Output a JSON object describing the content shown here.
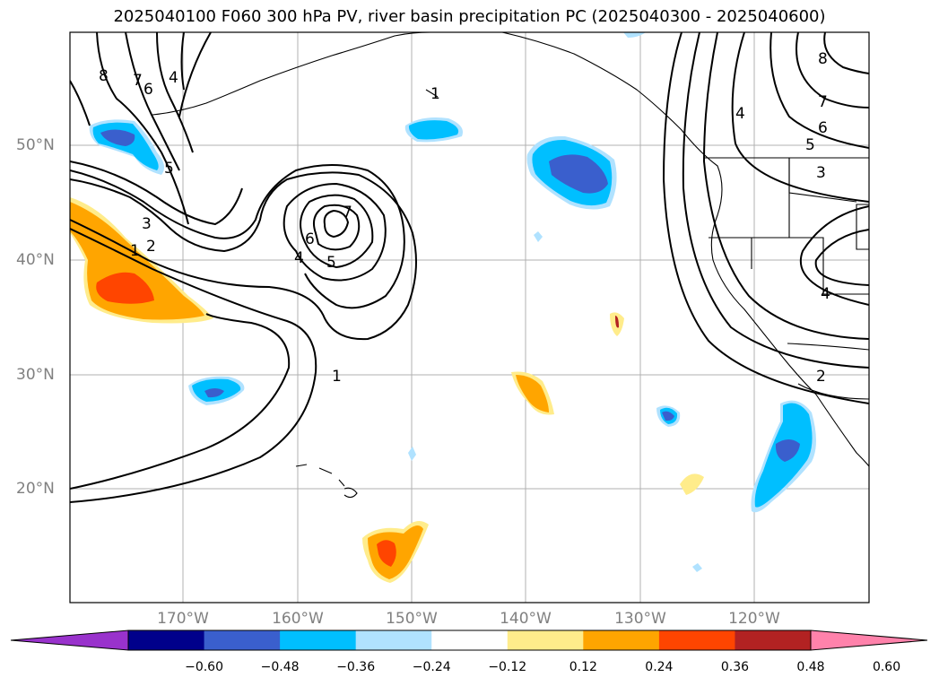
{
  "title": "2025040100 F060 300 hPa PV, river basin precipitation PC (2025040300 - 2025040600)",
  "lat_labels": [
    "50°N",
    "40°N",
    "30°N",
    "20°N"
  ],
  "lon_labels": [
    "170°W",
    "160°W",
    "150°W",
    "140°W",
    "130°W",
    "120°W"
  ],
  "contour_labels": [
    "8",
    "7",
    "6",
    "4",
    "5",
    "3",
    "2",
    "1",
    "1",
    "7",
    "6",
    "4",
    "5",
    "1",
    "8",
    "7",
    "6",
    "5",
    "4",
    "3",
    "2",
    "4"
  ],
  "colorbar": {
    "ticks": [
      "−0.60",
      "−0.48",
      "−0.36",
      "−0.24",
      "−0.12",
      "0.12",
      "0.24",
      "0.36",
      "0.48",
      "0.60"
    ],
    "colors": [
      "#9932cc",
      "#00008b",
      "#3a5fcd",
      "#00bfff",
      "#b0e2ff",
      "#ffffff",
      "#ffec8b",
      "#ffa500",
      "#ff4500",
      "#b22222",
      "#ff82ab"
    ]
  },
  "colors": {
    "neg_light": "#b0e2ff",
    "neg_mid": "#00bfff",
    "neg_strong": "#3a5fcd",
    "pos_light": "#ffec8b",
    "pos_mid": "#ffa500",
    "pos_strong": "#ff4500",
    "pos_dark": "#b22222",
    "grid": "#b0b0b0"
  }
}
